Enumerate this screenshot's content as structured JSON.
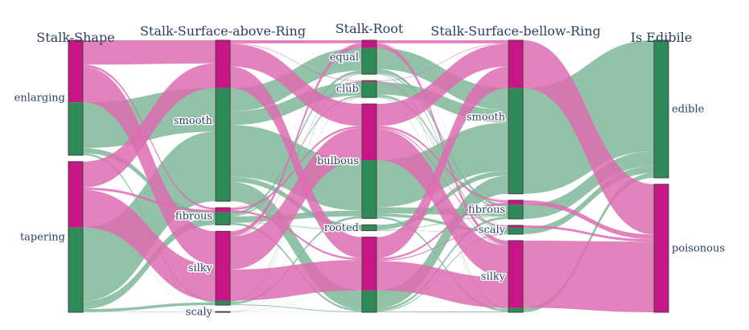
{
  "chart_data": {
    "type": "parallel_categories",
    "title": "",
    "colors": {
      "edible": "#2e8b57",
      "poisonous": "#c71585",
      "edible_ribbon": "#7fb99a",
      "poisonous_ribbon": "#dd6db2"
    },
    "dimensions": [
      {
        "label": "Stalk-Shape",
        "categories": [
          "enlarging",
          "tapering"
        ]
      },
      {
        "label": "Stalk-Surface-above-Ring",
        "categories": [
          "smooth",
          "fibrous",
          "silky",
          "scaly"
        ]
      },
      {
        "label": "Stalk-Root",
        "categories": [
          "equal",
          "club",
          "bulbous",
          "rooted",
          ""
        ]
      },
      {
        "label": "Stalk-Surface-bellow-Ring",
        "categories": [
          "smooth",
          "fibrous",
          "scaly",
          "silky"
        ]
      },
      {
        "label": "Is Edibile",
        "categories": [
          "edible",
          "poisonous"
        ]
      }
    ],
    "category_counts": {
      "Stalk-Shape": {
        "enlarging": {
          "edible": 1616,
          "poisonous": 1900
        },
        "tapering": {
          "edible": 2592,
          "poisonous": 2016
        }
      },
      "Stalk-Surface-above-Ring": {
        "smooth": {
          "edible": 3640,
          "poisonous": 1536
        },
        "fibrous": {
          "edible": 408,
          "poisonous": 144
        },
        "silky": {
          "edible": 144,
          "poisonous": 2228
        },
        "scaly": {
          "edible": 16,
          "poisonous": 8
        }
      },
      "Stalk-Root": {
        "equal": {
          "edible": 864,
          "poisonous": 256
        },
        "club": {
          "edible": 512,
          "poisonous": 44
        },
        "bulbous": {
          "edible": 1920,
          "poisonous": 1856
        },
        "rooted": {
          "edible": 192,
          "poisonous": 0
        },
        "": {
          "edible": 720,
          "poisonous": 1760
        }
      },
      "Stalk-Surface-bellow-Ring": {
        "smooth": {
          "edible": 3400,
          "poisonous": 1536
        },
        "fibrous": {
          "edible": 456,
          "poisonous": 144
        },
        "scaly": {
          "edible": 208,
          "poisonous": 76
        },
        "silky": {
          "edible": 144,
          "poisonous": 2160
        }
      },
      "Is Edibile": {
        "edible": {
          "edible": 4208,
          "poisonous": 0
        },
        "poisonous": {
          "edible": 0,
          "poisonous": 3916
        }
      }
    }
  }
}
